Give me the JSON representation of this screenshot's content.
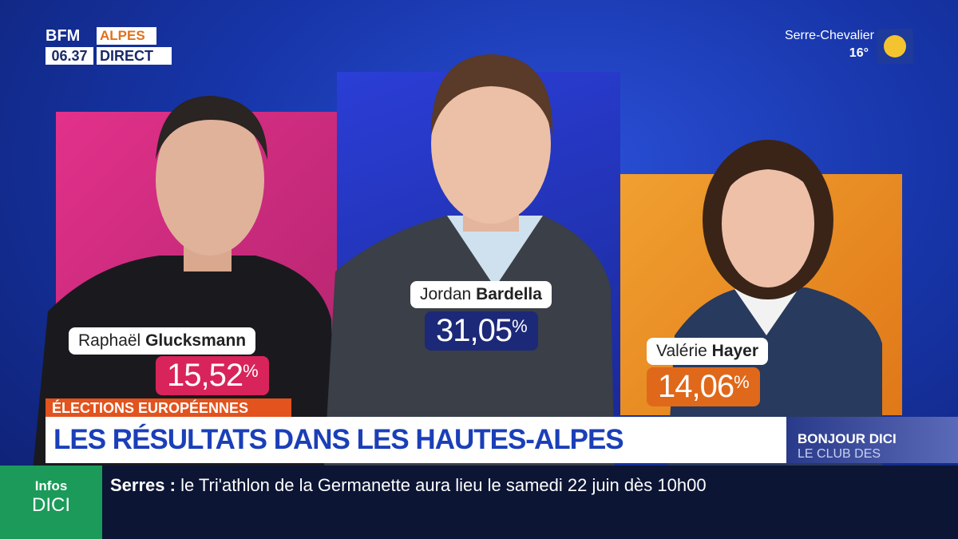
{
  "header": {
    "brand": "BFM",
    "region": "ALPES",
    "time": "06.37",
    "status": "DIRECT"
  },
  "weather": {
    "place": "Serre-Chevalier",
    "temperature": "16°"
  },
  "candidates": [
    {
      "first_name": "Raphaël",
      "last_name": "Glucksmann",
      "score": "15,52",
      "unit": "%"
    },
    {
      "first_name": "Jordan",
      "last_name": "Bardella",
      "score": "31,05",
      "unit": "%"
    },
    {
      "first_name": "Valérie",
      "last_name": "Hayer",
      "score": "14,06",
      "unit": "%"
    }
  ],
  "banner": {
    "tag": "ÉLECTIONS EUROPÉENNES",
    "headline": "LES RÉSULTATS DANS LES HAUTES-ALPES"
  },
  "side_show": {
    "line1": "BONJOUR DICI",
    "line2": "LE CLUB DES"
  },
  "ticker": {
    "logo_top": "Infos",
    "logo_bottom": "DICI",
    "place": "Serres :",
    "text": "le Tri'athlon de la Germanette aura lieu le samedi 22 juin dès 10h00"
  }
}
